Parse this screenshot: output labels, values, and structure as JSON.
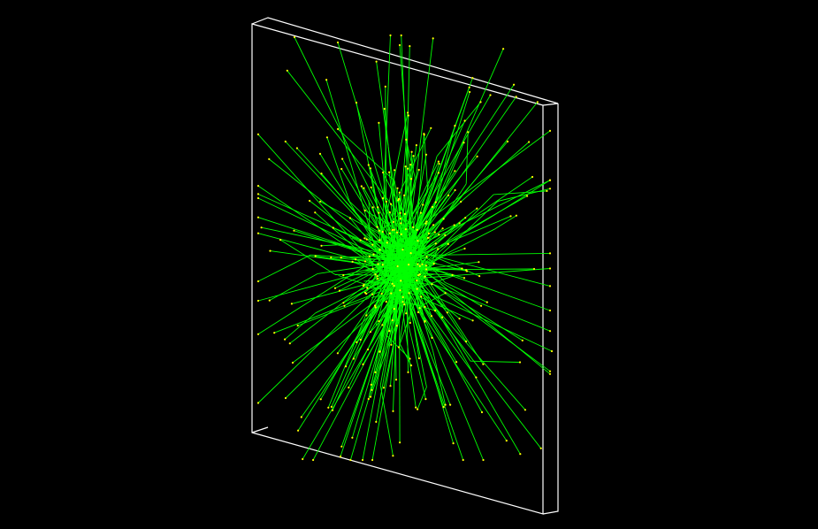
{
  "scene": {
    "background_color": "#000000",
    "detector_outline_color": "#ffffff",
    "track_color": "#00ff00",
    "hit_point_color": "#ffff00",
    "track_count": 260,
    "random_seed": 1337
  }
}
